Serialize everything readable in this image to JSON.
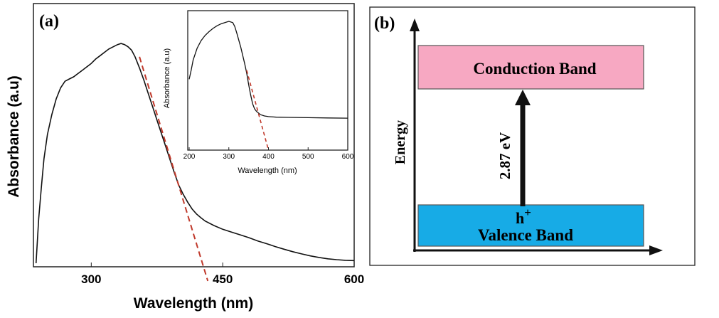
{
  "chart_data": [
    {
      "panel_label": "(a)",
      "type": "line",
      "xlabel": "Wavelength (nm)",
      "ylabel": "Absorbance (a.u)",
      "xlim": [
        234,
        600
      ],
      "ylim": [
        0,
        1.0
      ],
      "xticks": [
        "300",
        "450",
        "600"
      ],
      "xtick_values": [
        300,
        450,
        600
      ],
      "series": [
        {
          "name": "absorbance",
          "x": [
            237,
            240,
            243,
            246,
            250,
            255,
            260,
            265,
            270,
            275,
            280,
            285,
            290,
            295,
            300,
            305,
            310,
            315,
            320,
            325,
            330,
            334,
            338,
            342,
            346,
            350,
            355,
            360,
            365,
            370,
            375,
            380,
            385,
            390,
            395,
            400,
            405,
            410,
            415,
            420,
            425,
            430,
            440,
            450,
            460,
            470,
            480,
            490,
            500,
            510,
            520,
            530,
            540,
            550,
            560,
            570,
            580,
            590,
            600
          ],
          "y": [
            0.0,
            0.2,
            0.34,
            0.47,
            0.58,
            0.67,
            0.74,
            0.79,
            0.82,
            0.83,
            0.84,
            0.855,
            0.87,
            0.885,
            0.9,
            0.92,
            0.935,
            0.95,
            0.965,
            0.975,
            0.985,
            0.99,
            0.985,
            0.975,
            0.96,
            0.93,
            0.88,
            0.825,
            0.765,
            0.705,
            0.645,
            0.585,
            0.525,
            0.465,
            0.405,
            0.35,
            0.31,
            0.275,
            0.245,
            0.222,
            0.205,
            0.19,
            0.17,
            0.153,
            0.14,
            0.128,
            0.115,
            0.1,
            0.088,
            0.075,
            0.063,
            0.052,
            0.042,
            0.033,
            0.026,
            0.02,
            0.016,
            0.013,
            0.012
          ]
        },
        {
          "name": "tangent",
          "style": "dashed",
          "x": [
            355,
            433
          ],
          "y": [
            0.93,
            -0.08
          ]
        }
      ],
      "inset": {
        "type": "line",
        "xlabel": "Wavelength (nm)",
        "ylabel": "Absorbance (a.u)",
        "xlim": [
          200,
          600
        ],
        "ylim": [
          0,
          1.0
        ],
        "xticks": [
          "200",
          "300",
          "400",
          "500",
          "600"
        ],
        "xtick_values": [
          200,
          300,
          400,
          500,
          600
        ],
        "series": [
          {
            "name": "absorbance",
            "x": [
              200,
              205,
              210,
              220,
              230,
              240,
              250,
              260,
              270,
              280,
              290,
              300,
              310,
              315,
              320,
              330,
              340,
              345,
              350,
              355,
              360,
              365,
              370,
              380,
              390,
              400,
              420,
              450,
              500,
              550,
              600
            ],
            "y": [
              0.55,
              0.62,
              0.7,
              0.79,
              0.85,
              0.89,
              0.92,
              0.945,
              0.965,
              0.98,
              0.99,
              1.0,
              0.99,
              0.96,
              0.91,
              0.8,
              0.67,
              0.6,
              0.51,
              0.43,
              0.36,
              0.32,
              0.3,
              0.275,
              0.265,
              0.26,
              0.256,
              0.254,
              0.252,
              0.25,
              0.248
            ]
          },
          {
            "name": "tangent",
            "style": "dashed",
            "x": [
              345,
              400
            ],
            "y": [
              0.62,
              0.0
            ]
          }
        ]
      }
    },
    {
      "panel_label": "(b)",
      "type": "diagram",
      "axis_label": "Energy",
      "conduction_band": "Conduction Band",
      "valence_band": "Valence Band",
      "gap_label": "2.87 eV",
      "hole_label": "h",
      "hole_sup": "+",
      "colors": {
        "conduction": "#f7a8c2",
        "valence": "#17abe6",
        "curve": "#111111",
        "tangent": "#c0392b"
      }
    }
  ]
}
